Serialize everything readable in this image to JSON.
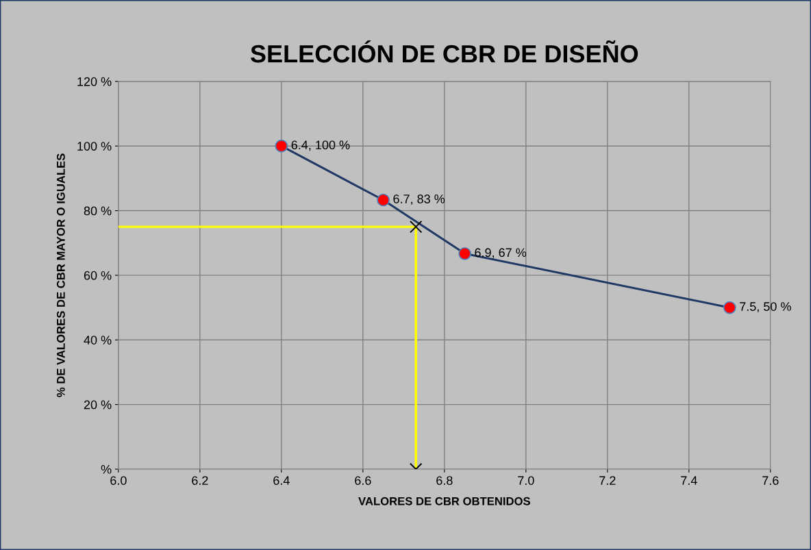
{
  "chart_data": {
    "type": "line",
    "title": "SELECCIÓN DE CBR DE DISEÑO",
    "xlabel": "VALORES DE CBR OBTENIDOS",
    "ylabel": "% DE VALORES DE CBR MAYOR O IGUALES",
    "xlim": [
      6.0,
      7.6
    ],
    "xticks": [
      {
        "value": 6.0,
        "label": "6.0"
      },
      6.2,
      6.4,
      6.6,
      6.8,
      {
        "value": 7.0,
        "label": "7.0"
      },
      7.2,
      7.4,
      7.6
    ],
    "ylim": [
      0,
      120
    ],
    "yticks": [
      {
        "value": 0,
        "label": "%"
      },
      {
        "value": 20,
        "label": "20 %"
      },
      {
        "value": 40,
        "label": "40 %"
      },
      {
        "value": 60,
        "label": "60 %"
      },
      {
        "value": 80,
        "label": "80 %"
      },
      {
        "value": 100,
        "label": "100 %"
      },
      {
        "value": 120,
        "label": "120 %"
      }
    ],
    "grid": true,
    "series": [
      {
        "color": "#1f3864",
        "marker": "circle",
        "x": [
          6.4,
          6.65,
          6.85,
          7.5
        ],
        "values": [
          100,
          83.3,
          66.7,
          50
        ],
        "value_labels": [
          "6.4, 100 %",
          "6.7, 83 %",
          "6.9, 67 %",
          "7.5, 50 %"
        ]
      },
      {
        "type": "line",
        "color": "#ffff00",
        "marker": "none",
        "x": [
          6.0,
          6.73,
          6.73
        ],
        "values": [
          75,
          75,
          0
        ]
      },
      {
        "type": "scatter",
        "color": "#000000",
        "marker": "cross",
        "x": [
          6.73,
          6.73
        ],
        "values": [
          75,
          0
        ]
      }
    ]
  }
}
